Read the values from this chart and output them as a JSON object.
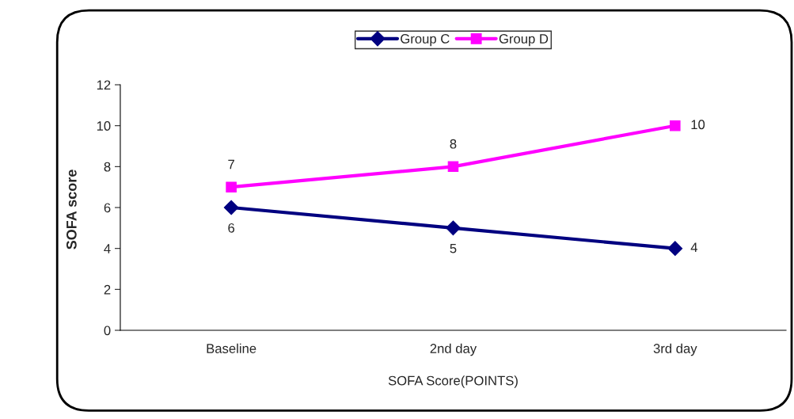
{
  "chart_data": {
    "type": "line",
    "xlabel": "SOFA Score(POINTS)",
    "ylabel": "SOFA score",
    "categories": [
      "Baseline",
      "2nd day",
      "3rd day"
    ],
    "series": [
      {
        "name": "Group C",
        "color": "#000080",
        "values": [
          6,
          5,
          4
        ],
        "marker": "diamond"
      },
      {
        "name": "Group D",
        "color": "#ff00ff",
        "values": [
          7,
          8,
          10
        ],
        "marker": "square"
      }
    ],
    "ylim": [
      0,
      12
    ],
    "yticks": [
      0,
      2,
      4,
      6,
      8,
      10,
      12
    ],
    "grid": false,
    "legend": "top",
    "data_labels": true
  }
}
